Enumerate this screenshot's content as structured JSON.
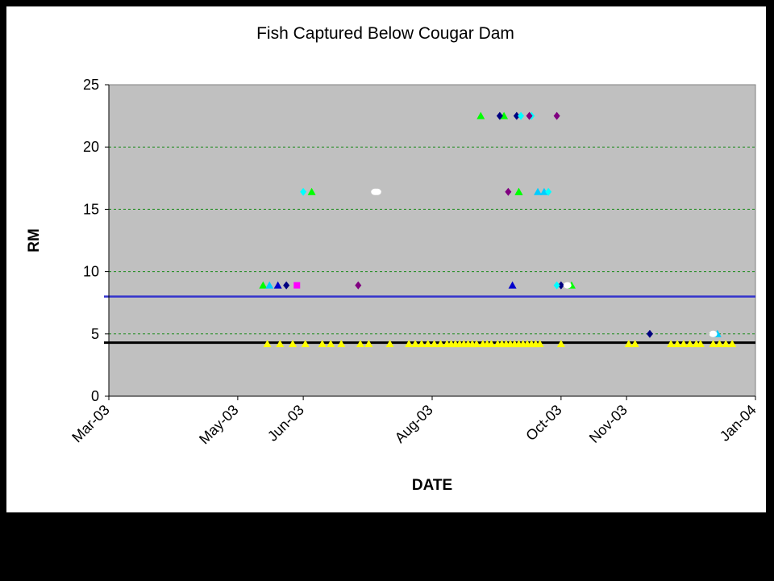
{
  "chart_data": {
    "type": "scatter",
    "title": "Fish Captured Below Cougar Dam",
    "xlabel": "DATE",
    "ylabel": "RM",
    "x_axis": {
      "ticks": [
        "2003-03-01",
        "2003-05-01",
        "2003-06-01",
        "2003-08-01",
        "2003-10-01",
        "2003-11-01",
        "2004-01-01"
      ],
      "tick_labels": [
        "Mar-03",
        "May-03",
        "Jun-03",
        "Aug-03",
        "Oct-03",
        "Nov-03",
        "Jan-04"
      ],
      "range": [
        "2003-03-01",
        "2004-01-01"
      ]
    },
    "y_axis": {
      "ticks": [
        0,
        5,
        10,
        15,
        20,
        25
      ],
      "range": [
        0,
        25
      ]
    },
    "grid": "horizontal-dashed",
    "colors": {
      "plot_bg": "#c0c0c0",
      "gridline": "#1a8a1a",
      "axis_frame": "#808080",
      "reference_blue": "#3333cc",
      "reference_black": "#000000"
    },
    "reference_lines": [
      {
        "y": 8,
        "color": "#3333cc"
      },
      {
        "y": 4.3,
        "color": "#000000"
      }
    ],
    "series": [
      {
        "marker": "triangle",
        "color": "#ffff00",
        "x": [
          "2003-05-15",
          "2003-05-21",
          "2003-05-27",
          "2003-06-02",
          "2003-06-10",
          "2003-06-14",
          "2003-06-19",
          "2003-06-28",
          "2003-07-02",
          "2003-07-12",
          "2003-07-21",
          "2003-07-24",
          "2003-07-27",
          "2003-07-30",
          "2003-08-02",
          "2003-08-05",
          "2003-08-08",
          "2003-08-10",
          "2003-08-12",
          "2003-08-14",
          "2003-08-16",
          "2003-08-18",
          "2003-08-20",
          "2003-08-22",
          "2003-08-25",
          "2003-08-27",
          "2003-08-29",
          "2003-09-01",
          "2003-09-03",
          "2003-09-05",
          "2003-09-07",
          "2003-09-09",
          "2003-09-11",
          "2003-09-13",
          "2003-09-15",
          "2003-09-17",
          "2003-09-19",
          "2003-09-21",
          "2003-10-01",
          "2003-11-02",
          "2003-11-05",
          "2003-11-22",
          "2003-11-25",
          "2003-11-28",
          "2003-12-01",
          "2003-12-04",
          "2003-12-06",
          "2003-12-12",
          "2003-12-15",
          "2003-12-18",
          "2003-12-21"
        ],
        "y": [
          4.2,
          4.2,
          4.2,
          4.2,
          4.2,
          4.2,
          4.2,
          4.2,
          4.2,
          4.2,
          4.2,
          4.2,
          4.2,
          4.2,
          4.2,
          4.2,
          4.2,
          4.2,
          4.2,
          4.2,
          4.2,
          4.2,
          4.2,
          4.2,
          4.2,
          4.2,
          4.2,
          4.2,
          4.2,
          4.2,
          4.2,
          4.2,
          4.2,
          4.2,
          4.2,
          4.2,
          4.2,
          4.2,
          4.2,
          4.2,
          4.2,
          4.2,
          4.2,
          4.2,
          4.2,
          4.2,
          4.2,
          4.2,
          4.2,
          4.2,
          4.2
        ]
      },
      {
        "marker": "triangle",
        "color": "#00ff00",
        "x": [
          "2003-05-13",
          "2003-06-05",
          "2003-08-24",
          "2003-09-04",
          "2003-09-11",
          "2003-09-11",
          "2003-10-06"
        ],
        "y": [
          8.9,
          16.4,
          22.5,
          22.5,
          16.4,
          16.4,
          8.9
        ]
      },
      {
        "marker": "triangle",
        "color": "#00ccff",
        "x": [
          "2003-05-16",
          "2003-09-20",
          "2003-09-23",
          "2003-12-14"
        ],
        "y": [
          8.9,
          16.4,
          16.4,
          5.0
        ]
      },
      {
        "marker": "triangle",
        "color": "#0000cc",
        "x": [
          "2003-05-20",
          "2003-09-08"
        ],
        "y": [
          8.9,
          8.9
        ]
      },
      {
        "marker": "diamond",
        "color": "#000080",
        "x": [
          "2003-05-24",
          "2003-09-02",
          "2003-09-10",
          "2003-10-01",
          "2003-11-12"
        ],
        "y": [
          8.9,
          22.5,
          22.5,
          8.9,
          5.0
        ]
      },
      {
        "marker": "diamond",
        "color": "#00ffff",
        "x": [
          "2003-06-01",
          "2003-09-12",
          "2003-09-17",
          "2003-09-29",
          "2003-09-25"
        ],
        "y": [
          16.4,
          22.5,
          22.5,
          8.9,
          16.4
        ]
      },
      {
        "marker": "diamond",
        "color": "#800080",
        "x": [
          "2003-06-27",
          "2003-09-06",
          "2003-09-16",
          "2003-09-29"
        ],
        "y": [
          8.9,
          16.4,
          22.5,
          22.5
        ]
      },
      {
        "marker": "square",
        "color": "#ff00ff",
        "x": [
          "2003-05-29"
        ],
        "y": [
          8.9
        ]
      },
      {
        "marker": "circle",
        "color": "#ffffff",
        "x": [
          "2003-07-05",
          "2003-07-06",
          "2003-10-04",
          "2003-12-12"
        ],
        "y": [
          16.4,
          16.4,
          8.9,
          5.0
        ]
      }
    ]
  }
}
